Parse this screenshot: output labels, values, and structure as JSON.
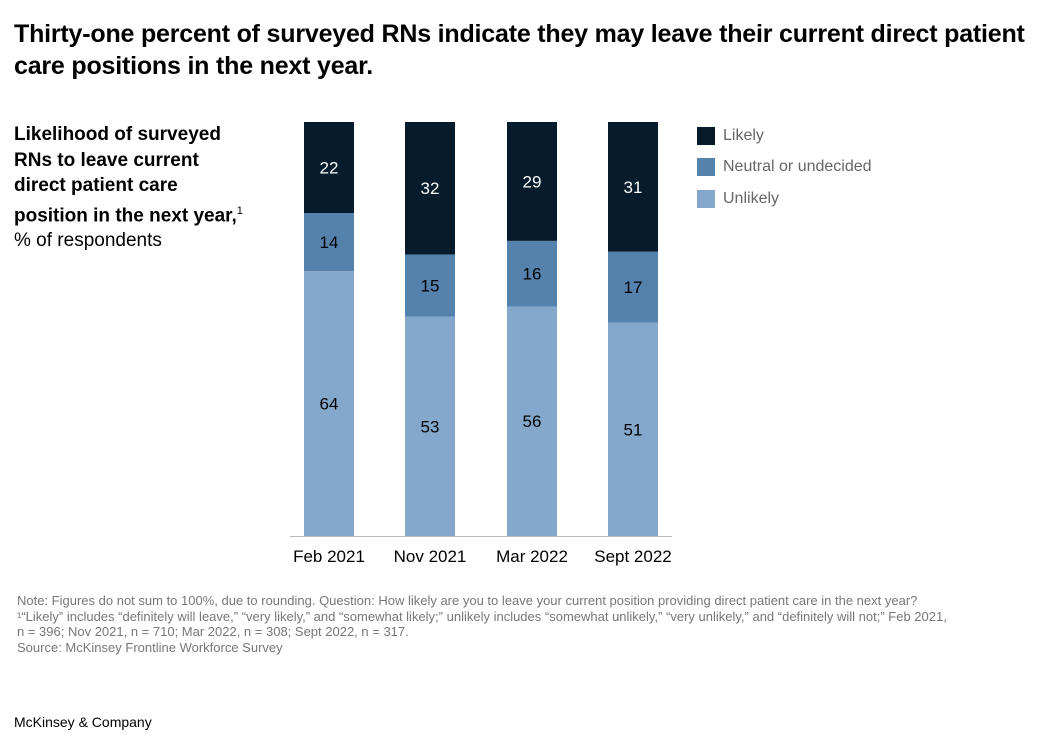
{
  "title": "Thirty-one percent of surveyed RNs indicate they may leave their current direct patient care positions in the next year.",
  "subtitle": {
    "bold": "Likelihood of surveyed RNs to leave current direct patient care position in the next year,",
    "footnote_mark": "1",
    "rest": " % of respondents"
  },
  "chart_data": {
    "type": "bar",
    "stacked": true,
    "categories": [
      "Feb 2021",
      "Nov 2021",
      "Mar 2022",
      "Sept 2022"
    ],
    "series": [
      {
        "name": "Unlikely",
        "color": "#84a8cc",
        "values": [
          64,
          53,
          56,
          51
        ]
      },
      {
        "name": "Neutral or undecided",
        "color": "#5581ad",
        "values": [
          14,
          15,
          16,
          17
        ]
      },
      {
        "name": "Likely",
        "color": "#061c2c",
        "values": [
          22,
          32,
          29,
          31
        ]
      }
    ],
    "ylim": [
      0,
      100
    ],
    "legend_position": "top-right",
    "grid": false
  },
  "legend": [
    "Likely",
    "Neutral or undecided",
    "Unlikely"
  ],
  "notes": [
    "Note: Figures do not sum to 100%, due to rounding. Question: How likely are you to leave your current position providing direct patient care in the next year?",
    "¹“Likely” includes “definitely will leave,” “very likely,” and “somewhat likely;” unlikely includes “somewhat unlikely,” “very unlikely,” and “definitely will not;” Feb 2021, n = 396; Nov 2021, n = 710; Mar 2022, n = 308; Sept 2022, n = 317.",
    "Source: McKinsey Frontline Workforce Survey"
  ],
  "brand": "McKinsey & Company"
}
